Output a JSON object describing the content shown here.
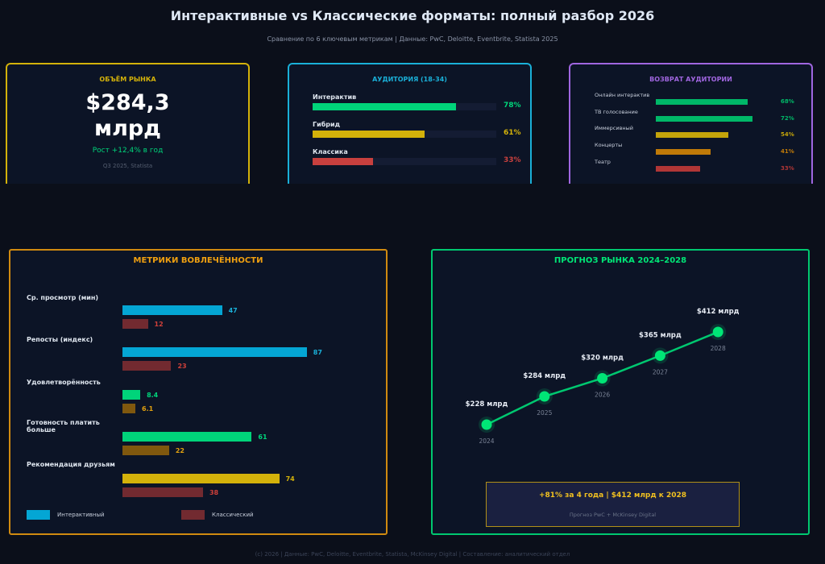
{
  "header": {
    "title": "Интерактивные vs Классические форматы: полный разбор 2026",
    "subtitle": "Сравнение по 6 ключевым метрикам  |  Данные: PwC, Deloitte, Eventbrite, Statista 2025"
  },
  "market_card": {
    "title": "ОБЪЁМ РЫНКА",
    "value_line1": "$284,3",
    "value_line2": "млрд",
    "growth": "Рост +12,4% в год",
    "source": "Q3 2025, Statista",
    "color": "#d4b20a"
  },
  "audience_card": {
    "title": "АУДИТОРИЯ (18-34)",
    "color": "#1ab0d8",
    "items": [
      {
        "label": "Интерактив",
        "value": 78,
        "text": "78%",
        "color": "#00d47a"
      },
      {
        "label": "Гибрид",
        "value": 61,
        "text": "61%",
        "color": "#d4b20a"
      },
      {
        "label": "Классика",
        "value": 33,
        "text": "33%",
        "color": "#c8403e"
      }
    ]
  },
  "return_card": {
    "title": "ВОЗВРАТ АУДИТОРИИ",
    "color": "#a066e0",
    "items": [
      {
        "label": "Онлайн интерактив",
        "value": 68,
        "text": "68%",
        "color": "#00b868"
      },
      {
        "label": "ТВ голосование",
        "value": 72,
        "text": "72%",
        "color": "#00b868"
      },
      {
        "label": "Иммерсивный",
        "value": 54,
        "text": "54%",
        "color": "#c4a40a"
      },
      {
        "label": "Концерты",
        "value": 41,
        "text": "41%",
        "color": "#c07a08"
      },
      {
        "label": "Театр",
        "value": 33,
        "text": "33%",
        "color": "#b03636"
      }
    ]
  },
  "chart_data": [
    {
      "type": "bar",
      "title": "МЕТРИКИ ВОВЛЕЧЁННОСТИ",
      "categories": [
        "Ср. просмотр (мин)",
        "Репосты (индекс)",
        "Удовлетворённость",
        "Готовность платить больше",
        "Рекомендация друзьям"
      ],
      "series": [
        {
          "name": "Интерактивный",
          "values": [
            47,
            87,
            8.4,
            61,
            74
          ],
          "labels": [
            "47",
            "87",
            "8.4",
            "61",
            "74"
          ],
          "colors": [
            "#04a6d4",
            "#04a6d4",
            "#00d47a",
            "#00d47a",
            "#d4b20a"
          ],
          "label_colors": [
            "#1ab0d8",
            "#1ab0d8",
            "#00d47a",
            "#00d47a",
            "#d4b20a"
          ]
        },
        {
          "name": "Классический",
          "values": [
            12,
            23,
            6.1,
            22,
            38
          ],
          "labels": [
            "12",
            "23",
            "6.1",
            "22",
            "38"
          ],
          "colors": [
            "#722a30",
            "#722a30",
            "#80580e",
            "#80580e",
            "#722a30"
          ],
          "label_colors": [
            "#d0403a",
            "#d0403a",
            "#e0a010",
            "#e0a010",
            "#d0403a"
          ]
        }
      ],
      "legend": [
        {
          "label": "Интерактивный",
          "color": "#04a6d4"
        },
        {
          "label": "Классический",
          "color": "#722a30"
        }
      ]
    },
    {
      "type": "line",
      "title": "ПРОГНОЗ РЫНКА 2024–2028",
      "x": [
        "2024",
        "2025",
        "2026",
        "2027",
        "2028"
      ],
      "y": [
        228,
        284,
        320,
        365,
        412
      ],
      "labels": [
        "$228 млрд",
        "$284 млрд",
        "$320 млрд",
        "$365 млрд",
        "$412 млрд"
      ],
      "color": "#00e676"
    }
  ],
  "forecast_box": {
    "headline": "+81% за 4 года  |  $412 млрд к 2028",
    "source": "Прогноз PwC + McKinsey Digital"
  },
  "footer": "(c) 2026  |  Данные: PwC, Deloitte, Eventbrite, Statista, McKinsey Digital  |  Составление: аналитический отдел"
}
